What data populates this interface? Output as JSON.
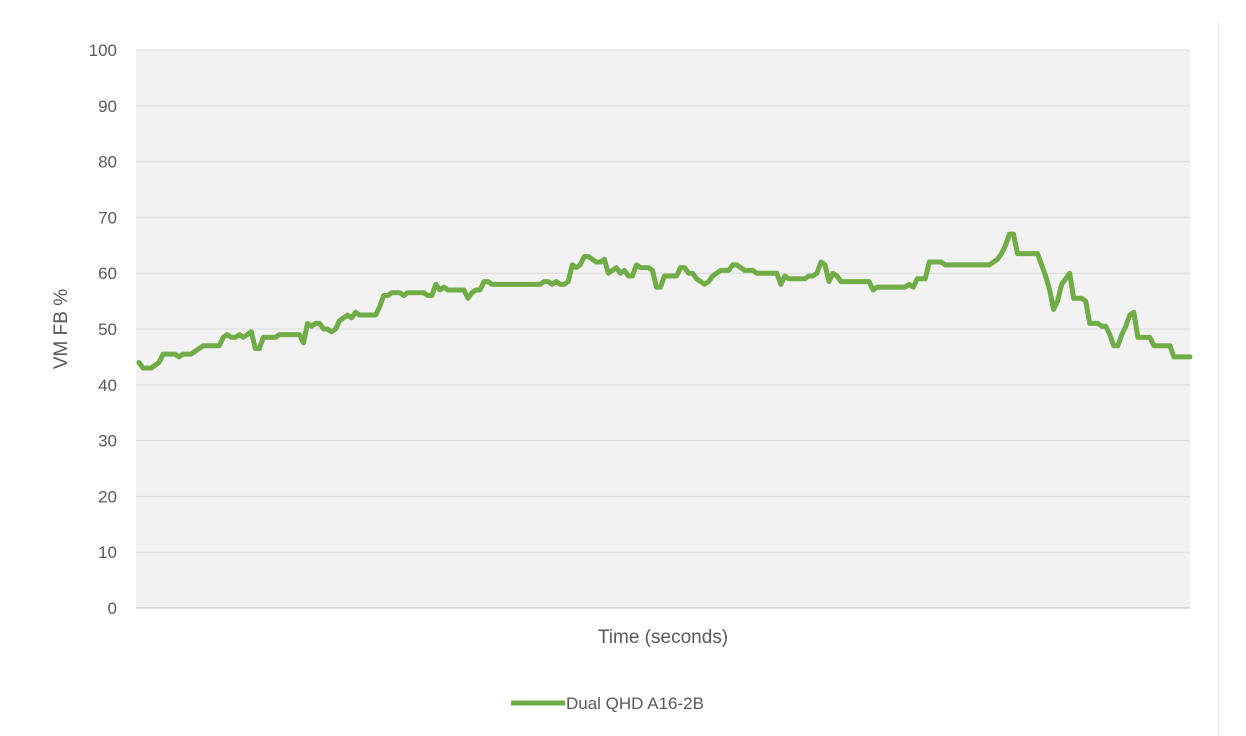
{
  "chart_data": {
    "type": "line",
    "title": "",
    "xlabel": "Time (seconds)",
    "ylabel": "VM FB %",
    "ylim": [
      0,
      100
    ],
    "yticks": [
      0,
      10,
      20,
      30,
      40,
      50,
      60,
      70,
      80,
      90,
      100
    ],
    "grid": true,
    "legend_placement": "bottom",
    "series": [
      {
        "name": "Dual QHD A16-2B",
        "color": "#70ad47",
        "values": [
          44,
          43,
          43,
          43,
          43.5,
          44,
          45.5,
          45.5,
          45.5,
          45.5,
          45,
          45.5,
          45.5,
          45.5,
          46,
          46.5,
          47,
          47,
          47,
          47,
          47,
          48.5,
          49,
          48.5,
          48.5,
          49,
          48.5,
          49,
          49.5,
          46.5,
          46.5,
          48.5,
          48.5,
          48.5,
          48.5,
          49,
          49,
          49,
          49,
          49,
          49,
          47.5,
          51,
          50.5,
          51,
          51,
          50,
          50,
          49.5,
          50,
          51.5,
          52,
          52.5,
          52,
          53,
          52.5,
          52.5,
          52.5,
          52.5,
          52.5,
          54,
          56,
          56,
          56.5,
          56.5,
          56.5,
          56,
          56.5,
          56.5,
          56.5,
          56.5,
          56.5,
          56,
          56,
          58,
          57,
          57.5,
          57,
          57,
          57,
          57,
          57,
          55.5,
          56.5,
          57,
          57,
          58.5,
          58.5,
          58,
          58,
          58,
          58,
          58,
          58,
          58,
          58,
          58,
          58,
          58,
          58,
          58,
          58.5,
          58.5,
          58,
          58.5,
          58,
          58,
          58.5,
          61.5,
          61,
          61.5,
          63,
          63,
          62.5,
          62,
          62,
          62.5,
          60,
          60.5,
          61,
          60,
          60.5,
          59.5,
          59.5,
          61.5,
          61,
          61,
          61,
          60.5,
          57.5,
          57.5,
          59.5,
          59.5,
          59.5,
          59.5,
          61,
          61,
          60,
          60,
          59,
          58.5,
          58,
          58.5,
          59.5,
          60,
          60.5,
          60.5,
          60.5,
          61.5,
          61.5,
          61,
          60.5,
          60.5,
          60.5,
          60,
          60,
          60,
          60,
          60,
          60,
          58,
          59.5,
          59,
          59,
          59,
          59,
          59,
          59.5,
          59.5,
          60,
          62,
          61.5,
          58.5,
          60,
          59.5,
          58.5,
          58.5,
          58.5,
          58.5,
          58.5,
          58.5,
          58.5,
          58.5,
          57,
          57.5,
          57.5,
          57.5,
          57.5,
          57.5,
          57.5,
          57.5,
          57.5,
          58,
          57.5,
          59,
          59,
          59,
          62,
          62,
          62,
          62,
          61.5,
          61.5,
          61.5,
          61.5,
          61.5,
          61.5,
          61.5,
          61.5,
          61.5,
          61.5,
          61.5,
          61.5,
          62,
          62.5,
          63.5,
          65,
          67,
          67,
          63.5,
          63.5,
          63.5,
          63.5,
          63.5,
          63.5,
          61.5,
          59.5,
          57,
          53.5,
          55,
          58,
          59,
          60,
          55.5,
          55.5,
          55.5,
          55,
          51,
          51,
          51,
          50.5,
          50.5,
          49,
          47,
          47,
          49,
          50.5,
          52.5,
          53,
          48.5,
          48.5,
          48.5,
          48.5,
          47,
          47,
          47,
          47,
          47,
          45,
          45,
          45,
          45,
          45
        ]
      }
    ]
  }
}
